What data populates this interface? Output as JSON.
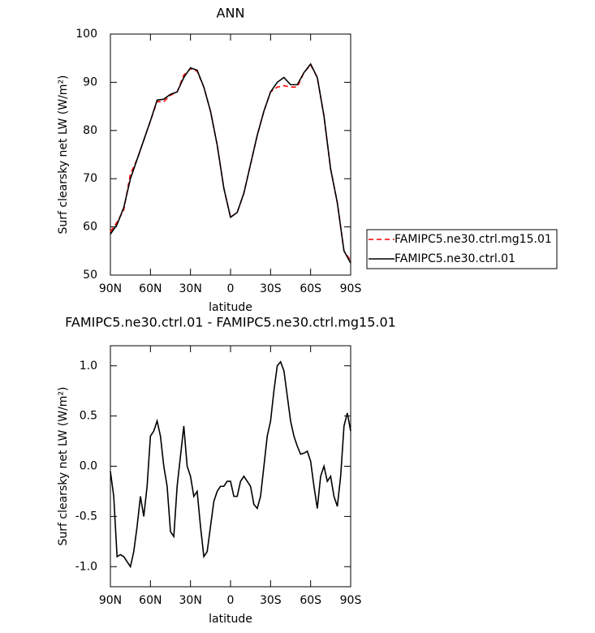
{
  "chart_data": [
    {
      "type": "line",
      "title": "ANN",
      "xlabel": "latitude",
      "ylabel": "Surf clearsky net LW (W/m²)",
      "x": [
        90,
        85,
        80,
        75,
        70,
        65,
        60,
        55,
        50,
        45,
        40,
        35,
        30,
        25,
        20,
        15,
        10,
        5,
        0,
        -5,
        -10,
        -15,
        -20,
        -25,
        -30,
        -35,
        -40,
        -45,
        -50,
        -55,
        -60,
        -65,
        -70,
        -75,
        -80,
        -85,
        -90
      ],
      "series": [
        {
          "name": "FAMIPC5.ne30.ctrl.mg15.01",
          "color": "#ff0000",
          "linestyle": "dashed",
          "values": [
            59,
            61,
            63.5,
            71,
            74,
            78,
            82,
            86,
            86,
            87.3,
            88,
            91.5,
            92.8,
            92.3,
            89,
            84,
            77,
            68,
            62,
            63,
            67,
            73,
            79,
            84,
            88,
            89,
            89.3,
            89,
            89,
            92,
            93.6,
            91,
            83,
            72,
            65,
            55,
            53
          ]
        },
        {
          "name": "FAMIPC5.ne30.ctrl.01",
          "color": "#000000",
          "linestyle": "solid",
          "values": [
            58.5,
            60.5,
            64,
            70,
            74,
            78,
            82,
            86.3,
            86.5,
            87.5,
            88,
            91,
            93,
            92.5,
            89,
            84,
            77,
            68,
            62,
            63,
            67,
            73,
            79,
            84,
            88,
            90,
            91,
            89.5,
            89.5,
            92,
            93.8,
            91,
            83,
            72,
            65,
            55,
            52.5
          ]
        }
      ],
      "xlim": [
        90,
        -90
      ],
      "xticks": [
        {
          "value": 90,
          "label": "90N"
        },
        {
          "value": 60,
          "label": "60N"
        },
        {
          "value": 30,
          "label": "30N"
        },
        0,
        {
          "value": -30,
          "label": "30S"
        },
        {
          "value": -60,
          "label": "60S"
        },
        {
          "value": -90,
          "label": "90S"
        }
      ],
      "ylim": [
        50,
        100
      ],
      "yticks": [
        50,
        60,
        70,
        80,
        90,
        100
      ],
      "legend": "right"
    },
    {
      "type": "line",
      "title": "FAMIPC5.ne30.ctrl.01 - FAMIPC5.ne30.ctrl.mg15.01",
      "xlabel": "latitude",
      "ylabel": "Surf clearsky net LW (W/m²)",
      "color": "#000000",
      "x": [
        90,
        87.5,
        85,
        82.5,
        80,
        77.5,
        75,
        72.5,
        70,
        67.5,
        65,
        62.5,
        60,
        57.5,
        55,
        52.5,
        50,
        47.5,
        45,
        42.5,
        40,
        37.5,
        35,
        32.5,
        30,
        27.5,
        25,
        22.5,
        20,
        17.5,
        15,
        12.5,
        10,
        7.5,
        5,
        2.5,
        0,
        -2.5,
        -5,
        -7.5,
        -10,
        -12.5,
        -15,
        -17.5,
        -20,
        -22.5,
        -25,
        -27.5,
        -30,
        -32.5,
        -35,
        -37.5,
        -40,
        -42.5,
        -45,
        -47.5,
        -50,
        -52.5,
        -55,
        -57.5,
        -60,
        -62.5,
        -65,
        -67.5,
        -70,
        -72.5,
        -75,
        -77.5,
        -80,
        -82.5,
        -85,
        -87.5,
        -90
      ],
      "values": [
        -0.05,
        -0.3,
        -0.9,
        -0.88,
        -0.9,
        -0.95,
        -1.0,
        -0.85,
        -0.6,
        -0.3,
        -0.5,
        -0.2,
        0.3,
        0.35,
        0.45,
        0.3,
        0.0,
        -0.2,
        -0.65,
        -0.7,
        -0.2,
        0.1,
        0.4,
        0.0,
        -0.1,
        -0.3,
        -0.25,
        -0.6,
        -0.9,
        -0.85,
        -0.6,
        -0.35,
        -0.25,
        -0.2,
        -0.2,
        -0.15,
        -0.15,
        -0.3,
        -0.3,
        -0.15,
        -0.1,
        -0.15,
        -0.2,
        -0.38,
        -0.42,
        -0.3,
        0.0,
        0.3,
        0.45,
        0.75,
        1.0,
        1.04,
        0.95,
        0.7,
        0.45,
        0.3,
        0.2,
        0.12,
        0.13,
        0.15,
        0.05,
        -0.2,
        -0.42,
        -0.1,
        0.0,
        -0.15,
        -0.1,
        -0.3,
        -0.4,
        -0.1,
        0.4,
        0.53,
        0.35
      ],
      "xlim": [
        90,
        -90
      ],
      "xticks": [
        {
          "value": 90,
          "label": "90N"
        },
        {
          "value": 60,
          "label": "60N"
        },
        {
          "value": 30,
          "label": "30N"
        },
        0,
        {
          "value": -30,
          "label": "30S"
        },
        {
          "value": -60,
          "label": "60S"
        },
        {
          "value": -90,
          "label": "90S"
        }
      ],
      "ylim": [
        -1.2,
        1.2
      ],
      "yticks": [
        {
          "value": -1.0,
          "label": "-1.0"
        },
        {
          "value": -0.5,
          "label": "-0.5"
        },
        {
          "value": 0,
          "label": "0.0"
        },
        {
          "value": 0.5,
          "label": "0.5"
        },
        {
          "value": 1.0,
          "label": "1.0"
        }
      ]
    }
  ]
}
